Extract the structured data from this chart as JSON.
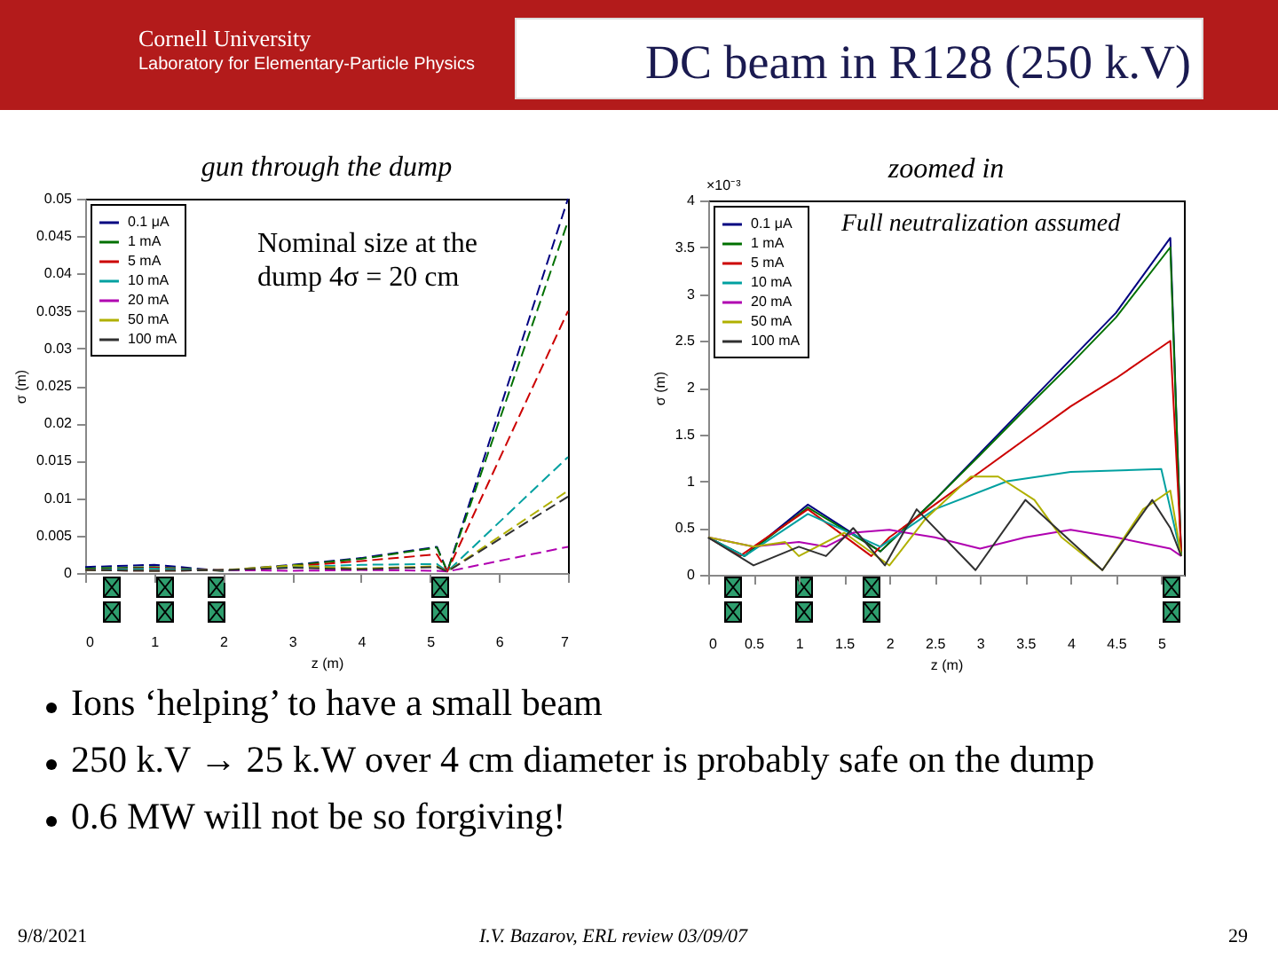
{
  "chart_data": [
    {
      "type": "line",
      "title": "gun through the dump",
      "xlabel": "z (m)",
      "ylabel": "σ (m)",
      "xlim": [
        0,
        7
      ],
      "xticks": [
        0,
        1,
        2,
        3,
        4,
        5,
        6,
        7
      ],
      "ylim": [
        0,
        0.05
      ],
      "yticks": [
        0,
        0.005,
        0.01,
        0.015,
        0.02,
        0.025,
        0.03,
        0.035,
        0.04,
        0.045,
        0.05
      ],
      "grid": false,
      "legend": "top left",
      "line_style": "dashed",
      "series": [
        {
          "name": "0.1 μA",
          "color": "#000080",
          "x": [
            0,
            1,
            2,
            3,
            4,
            5.1,
            5.25,
            7
          ],
          "values": [
            0.0008,
            0.0011,
            0.0003,
            0.0011,
            0.002,
            0.0035,
            0.0002,
            0.05
          ]
        },
        {
          "name": "1 mA",
          "color": "#007000",
          "x": [
            0,
            1,
            2,
            3,
            4,
            5.1,
            5.25,
            7
          ],
          "values": [
            0.0006,
            0.0008,
            0.0003,
            0.001,
            0.0019,
            0.0034,
            0.0002,
            0.047
          ]
        },
        {
          "name": "5 mA",
          "color": "#cc0000",
          "x": [
            0,
            1,
            2,
            3,
            4,
            5.1,
            5.25,
            7
          ],
          "values": [
            0.0004,
            0.0007,
            0.0003,
            0.0009,
            0.0016,
            0.0025,
            0.0002,
            0.035
          ]
        },
        {
          "name": "10 mA",
          "color": "#00a0a0",
          "x": [
            0,
            1,
            2,
            3,
            4,
            5.1,
            5.25,
            7
          ],
          "values": [
            0.0004,
            0.0006,
            0.0003,
            0.0008,
            0.0011,
            0.0012,
            0.0002,
            0.0155
          ]
        },
        {
          "name": "20 mA",
          "color": "#b000b0",
          "x": [
            0,
            1,
            2,
            3,
            4,
            5.1,
            5.25,
            7
          ],
          "values": [
            0.0004,
            0.0003,
            0.0004,
            0.0003,
            0.0004,
            0.0003,
            0.0002,
            0.0035
          ]
        },
        {
          "name": "50 mA",
          "color": "#b0b000",
          "x": [
            0,
            1,
            2,
            3,
            4,
            5.1,
            5.25,
            7
          ],
          "values": [
            0.0004,
            0.0003,
            0.0004,
            0.001,
            0.0006,
            0.0009,
            0.0002,
            0.011
          ]
        },
        {
          "name": "100 mA",
          "color": "#303030",
          "x": [
            0,
            1,
            2,
            3,
            4,
            5.1,
            5.25,
            7
          ],
          "values": [
            0.0004,
            0.0003,
            0.0004,
            0.0007,
            0.0005,
            0.0008,
            0.0002,
            0.0102
          ]
        }
      ],
      "annotations": [
        "Cornell University",
        "Laboratory for Elementary-Particle Physics",
        "DC beam in R128 (250 k.V)",
        "Nominal size at the dump 4σ = 20 cm",
        "Ions ‘helping’ to have a small beam",
        "250 k.V → 25 k.W over 4 cm diameter is probably safe on the dump",
        "0.6 MW will not be so forgiving!",
        "9/8/2021",
        "I.V. Bazarov, ERL review 03/09/07",
        "29"
      ]
    },
    {
      "type": "line",
      "title": "zoomed in",
      "xlabel": "z (m)",
      "ylabel": "σ (m)",
      "xlim": [
        0,
        5.25
      ],
      "xticks": [
        0,
        0.5,
        1,
        1.5,
        2,
        2.5,
        3,
        3.5,
        4,
        4.5,
        5
      ],
      "ylim": [
        0,
        4
      ],
      "yticks": [
        0,
        0.5,
        1,
        1.5,
        2,
        2.5,
        3,
        3.5,
        4
      ],
      "grid": false,
      "legend": "top left",
      "line_style": "solid",
      "series": [
        {
          "name": "0.1 μA",
          "color": "#000080",
          "x": [
            0,
            0.4,
            1.1,
            1.9,
            2.5,
            3,
            3.5,
            4,
            4.5,
            5.1,
            5.22
          ],
          "values": [
            0.4,
            0.2,
            0.75,
            0.25,
            0.8,
            1.3,
            1.8,
            2.3,
            2.8,
            3.6,
            0.2
          ]
        },
        {
          "name": "1 mA",
          "color": "#007000",
          "x": [
            0,
            0.4,
            1.1,
            1.9,
            2.5,
            3,
            3.5,
            4,
            4.5,
            5.1,
            5.22
          ],
          "values": [
            0.4,
            0.2,
            0.72,
            0.25,
            0.8,
            1.28,
            1.77,
            2.25,
            2.75,
            3.5,
            0.2
          ]
        },
        {
          "name": "5 mA",
          "color": "#cc0000",
          "x": [
            0,
            0.35,
            1.1,
            1.8,
            2.0,
            2.5,
            3,
            3.5,
            4,
            4.5,
            5.1,
            5.22
          ],
          "values": [
            0.4,
            0.2,
            0.7,
            0.2,
            0.4,
            0.75,
            1.1,
            1.45,
            1.8,
            2.1,
            2.5,
            0.25
          ]
        },
        {
          "name": "10 mA",
          "color": "#00a0a0",
          "x": [
            0,
            0.4,
            1.1,
            1.9,
            2.5,
            3.3,
            4,
            5,
            5.22
          ],
          "values": [
            0.4,
            0.2,
            0.65,
            0.3,
            0.7,
            1.0,
            1.1,
            1.13,
            0.2
          ]
        },
        {
          "name": "20 mA",
          "color": "#b000b0",
          "x": [
            0,
            0.5,
            1,
            1.3,
            1.6,
            2,
            2.5,
            3,
            3.5,
            4,
            4.5,
            5.1,
            5.22
          ],
          "values": [
            0.4,
            0.3,
            0.35,
            0.3,
            0.45,
            0.48,
            0.4,
            0.28,
            0.4,
            0.48,
            0.4,
            0.28,
            0.2
          ]
        },
        {
          "name": "50 mA",
          "color": "#b0b000",
          "x": [
            0,
            0.5,
            0.85,
            1,
            1.5,
            2,
            2.4,
            2.9,
            3.2,
            3.6,
            3.9,
            4.35,
            4.8,
            5.1,
            5.22
          ],
          "values": [
            0.4,
            0.3,
            0.35,
            0.2,
            0.45,
            0.1,
            0.6,
            1.05,
            1.05,
            0.8,
            0.4,
            0.05,
            0.7,
            0.9,
            0.2
          ]
        },
        {
          "name": "100 mA",
          "color": "#303030",
          "x": [
            0,
            0.5,
            1,
            1.3,
            1.6,
            1.95,
            2.3,
            2.95,
            3.5,
            4.35,
            4.9,
            5.1,
            5.22
          ],
          "values": [
            0.4,
            0.1,
            0.3,
            0.2,
            0.5,
            0.1,
            0.7,
            0.05,
            0.8,
            0.05,
            0.8,
            0.5,
            0.2
          ]
        }
      ],
      "annotations": [
        "Full neutralization assumed",
        "×10⁻³"
      ]
    }
  ]
}
